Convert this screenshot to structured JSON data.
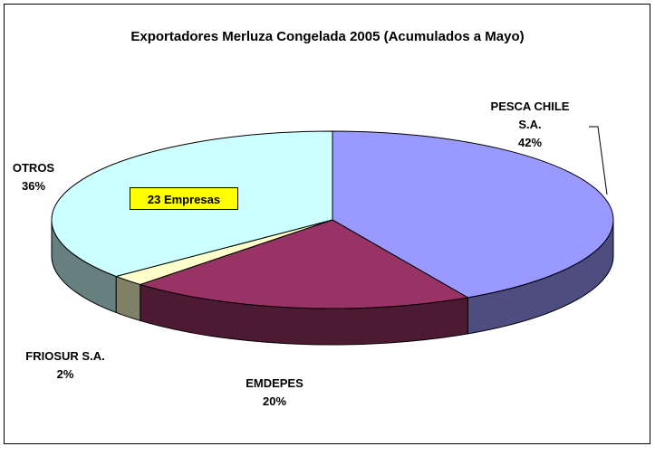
{
  "chart_data": {
    "type": "pie3d",
    "title": "Exportadores Merluza Congelada 2005 (Acumulados a Mayo)",
    "categories": [
      "PESCA CHILE S.A.",
      "EMDEPES",
      "FRIOSUR S.A.",
      "OTROS"
    ],
    "values": [
      42,
      20,
      2,
      36
    ],
    "value_labels": [
      "42%",
      "20%",
      "2%",
      "36%"
    ],
    "colors": [
      "#9999ff",
      "#993366",
      "#ffffcc",
      "#ccffff"
    ],
    "annotation": "23 Empresas"
  }
}
